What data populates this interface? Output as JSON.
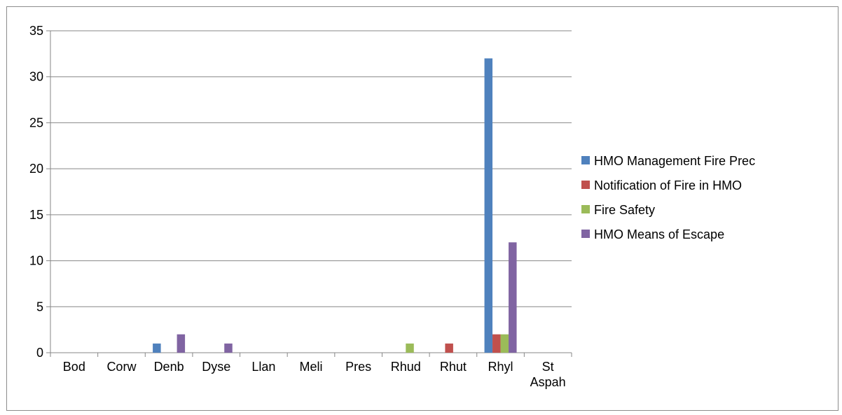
{
  "chart_data": {
    "type": "bar",
    "categories": [
      "Bod",
      "Corw",
      "Denb",
      "Dyse",
      "Llan",
      "Meli",
      "Pres",
      "Rhud",
      "Rhut",
      "Rhyl",
      "St Aspah"
    ],
    "series": [
      {
        "name": "HMO Management Fire Prec",
        "color": "#4f81bd",
        "values": [
          0,
          0,
          1,
          0,
          0,
          0,
          0,
          0,
          0,
          32,
          0
        ]
      },
      {
        "name": "Notification of Fire in HMO",
        "color": "#c0504d",
        "values": [
          0,
          0,
          0,
          0,
          0,
          0,
          0,
          0,
          1,
          2,
          0
        ]
      },
      {
        "name": "Fire Safety",
        "color": "#9bbb59",
        "values": [
          0,
          0,
          0,
          0,
          0,
          0,
          0,
          1,
          0,
          2,
          0
        ]
      },
      {
        "name": "HMO Means of Escape",
        "color": "#8064a2",
        "values": [
          0,
          0,
          2,
          1,
          0,
          0,
          0,
          0,
          0,
          12,
          0
        ]
      }
    ],
    "ylim": [
      0,
      35
    ],
    "yticks": [
      0,
      5,
      10,
      15,
      20,
      25,
      30,
      35
    ],
    "grid": true,
    "legend": "right",
    "title": "",
    "xlabel": "",
    "ylabel": ""
  }
}
